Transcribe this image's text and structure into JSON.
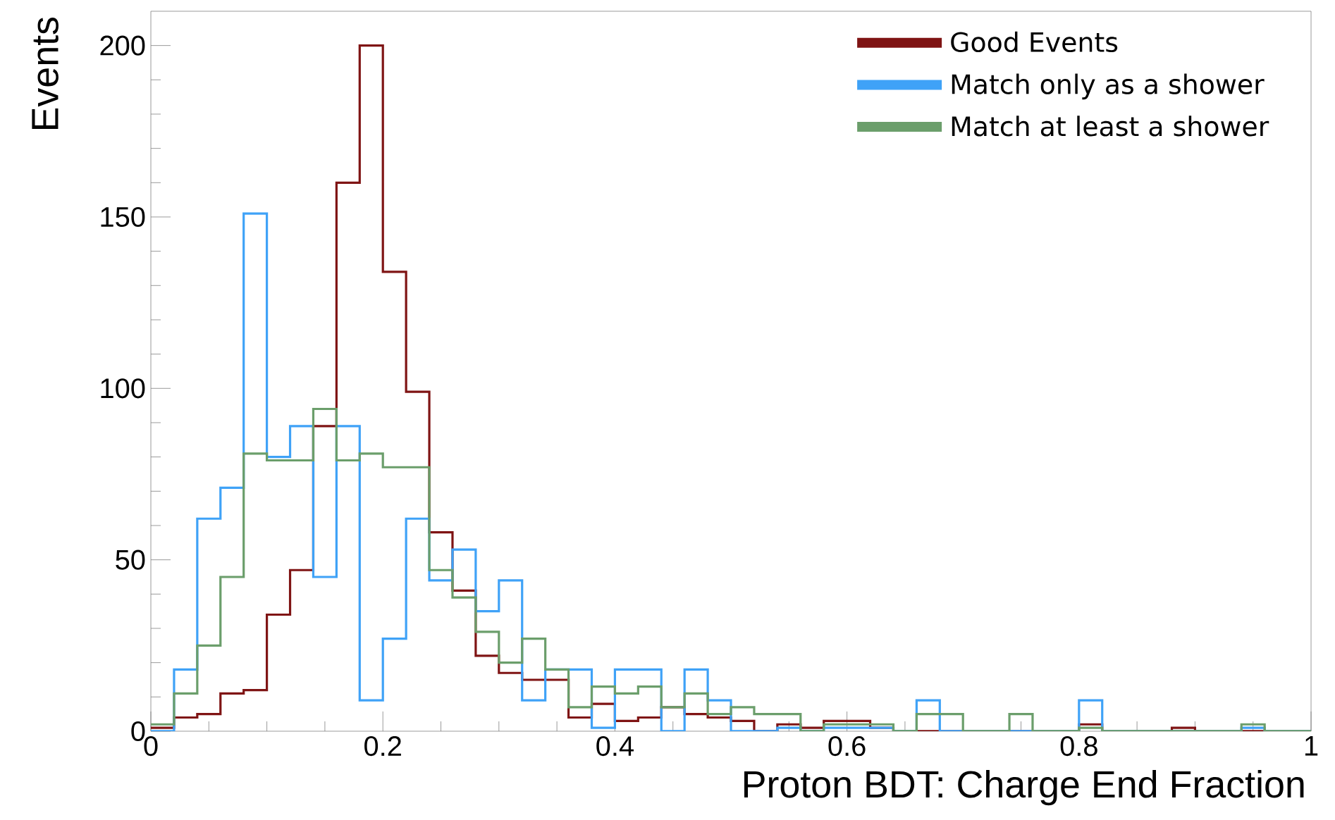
{
  "chart_data": {
    "type": "histogram",
    "xlabel": "Proton BDT: Charge End Fraction",
    "ylabel": "Events",
    "bins": [
      0,
      0.02,
      0.04,
      0.06,
      0.08,
      0.1,
      0.12,
      0.14,
      0.16,
      0.18,
      0.2,
      0.22,
      0.24,
      0.26,
      0.28,
      0.3,
      0.32,
      0.34,
      0.36,
      0.38,
      0.4,
      0.42,
      0.44,
      0.46,
      0.48,
      0.5,
      0.52,
      0.54,
      0.56,
      0.58,
      0.6,
      0.62,
      0.64,
      0.66,
      0.68,
      0.7,
      0.72,
      0.74,
      0.76,
      0.78,
      0.8,
      0.82,
      0.84,
      0.86,
      0.88,
      0.9,
      0.92,
      0.94,
      0.96,
      0.98,
      1
    ],
    "series": [
      {
        "name": "Good Events",
        "color": "#7f1414",
        "values": [
          1,
          4,
          5,
          11,
          12,
          34,
          47,
          89,
          160,
          200,
          134,
          99,
          58,
          41,
          22,
          17,
          15,
          15,
          4,
          8,
          3,
          4,
          7,
          5,
          4,
          3,
          0,
          2,
          1,
          3,
          3,
          1,
          0,
          0,
          0,
          0,
          0,
          0,
          0,
          0,
          2,
          0,
          0,
          0,
          1,
          0,
          0,
          0,
          0,
          0
        ]
      },
      {
        "name": "Match only as a shower",
        "color": "#3fa2f7",
        "values": [
          0,
          18,
          62,
          71,
          151,
          80,
          89,
          45,
          89,
          9,
          27,
          62,
          44,
          53,
          35,
          44,
          9,
          18,
          18,
          1,
          18,
          18,
          0,
          18,
          9,
          0,
          0,
          1,
          0,
          1,
          1,
          1,
          0,
          9,
          0,
          0,
          0,
          0,
          0,
          0,
          9,
          0,
          0,
          0,
          0,
          0,
          0,
          1,
          0,
          0
        ]
      },
      {
        "name": "Match at least a shower",
        "color": "#6b9e6b",
        "values": [
          2,
          11,
          25,
          45,
          81,
          79,
          79,
          94,
          79,
          81,
          77,
          77,
          47,
          39,
          29,
          20,
          27,
          18,
          7,
          13,
          11,
          13,
          7,
          11,
          5,
          7,
          5,
          5,
          0,
          2,
          2,
          2,
          0,
          5,
          5,
          0,
          0,
          5,
          0,
          0,
          1,
          0,
          0,
          0,
          0,
          0,
          0,
          2,
          0,
          0
        ]
      }
    ],
    "xlim": [
      0,
      1
    ],
    "ylim": [
      0,
      210
    ],
    "xticks": [
      0,
      0.2,
      0.4,
      0.6,
      0.8,
      1
    ],
    "yticks": [
      0,
      50,
      100,
      150,
      200
    ],
    "grid": false,
    "legend": "top right"
  }
}
